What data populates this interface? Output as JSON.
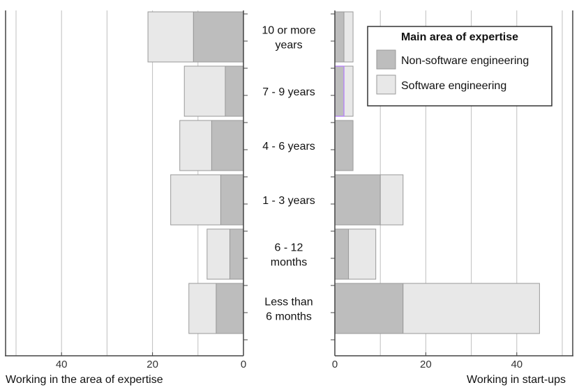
{
  "chart_data": {
    "type": "bar",
    "orientation": "horizontal",
    "stacked": true,
    "categories": [
      "10 or more years",
      "7 - 9  years",
      "4 - 6 years",
      "1 - 3 years",
      "6 - 12 months",
      "Less than 6 months"
    ],
    "category_lines": [
      [
        "10 or more",
        "years"
      ],
      [
        "7 - 9  years"
      ],
      [
        "4 - 6 years"
      ],
      [
        "1 - 3 years"
      ],
      [
        "6 - 12",
        "months"
      ],
      [
        "Less than",
        "6 months"
      ]
    ],
    "legend": {
      "title": "Main area of expertise",
      "position": "top-right",
      "entries": [
        "Non-software engineering",
        "Software engineering"
      ]
    },
    "colors": {
      "non_software": "#bdbdbd",
      "software": "#e8e8e8",
      "bar_stroke": "#999999",
      "grid": "#bfbfbf",
      "axis": "#444444",
      "highlight": "#b57bff"
    },
    "panels": [
      {
        "xlabel": "Working in the area of expertise",
        "xlim": [
          0,
          50
        ],
        "reversed": true,
        "xticks": [
          40,
          20,
          0
        ],
        "grid_at": [
          10,
          20,
          30,
          40,
          50
        ],
        "series": [
          {
            "name": "Non-software engineering",
            "values": [
              11,
              4,
              7,
              5,
              3,
              6
            ]
          },
          {
            "name": "Software engineering",
            "values": [
              10,
              9,
              7,
              11,
              5,
              6
            ]
          }
        ]
      },
      {
        "xlabel": "Working in start-ups",
        "xlim": [
          0,
          50
        ],
        "reversed": false,
        "xticks": [
          0,
          20,
          40
        ],
        "grid_at": [
          10,
          20,
          30,
          40,
          50
        ],
        "series": [
          {
            "name": "Non-software engineering",
            "values": [
              2,
              2,
              4,
              10,
              3,
              15
            ]
          },
          {
            "name": "Software engineering",
            "values": [
              2,
              2,
              0,
              5,
              6,
              30
            ]
          }
        ]
      }
    ],
    "grid": true
  }
}
